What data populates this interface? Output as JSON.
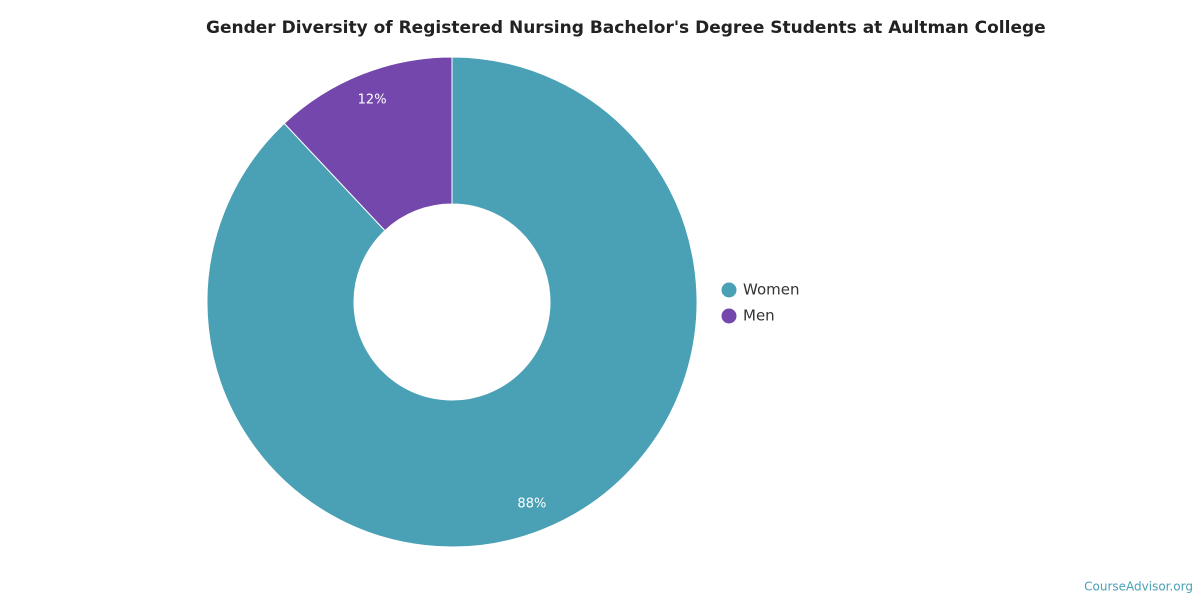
{
  "chart_data": {
    "type": "donut",
    "title": "Gender Diversity of Registered Nursing Bachelor's Degree Students at Aultman College",
    "categories": [
      "Women",
      "Men"
    ],
    "values": [
      88,
      12
    ],
    "value_labels": [
      "88%",
      "12%"
    ],
    "colors": [
      "#4aa0b5",
      "#7447ad"
    ],
    "legend": "right"
  },
  "watermark": "CourseAdvisor.org"
}
